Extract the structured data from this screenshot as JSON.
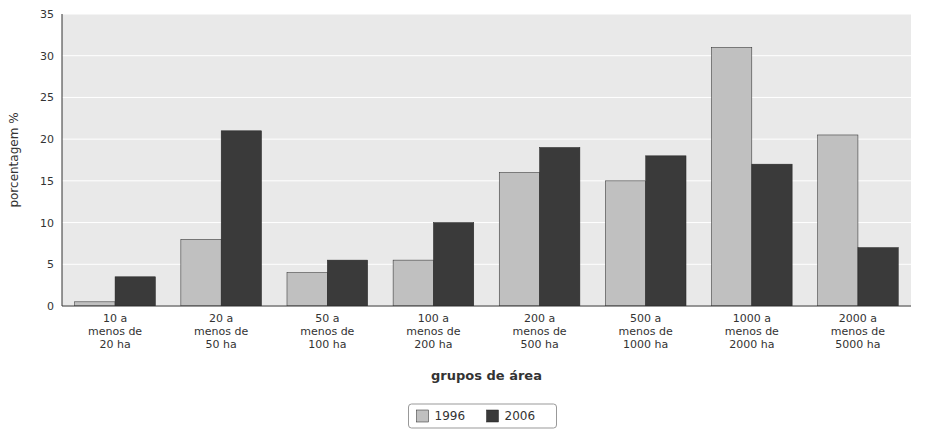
{
  "chart_data": {
    "type": "bar",
    "categories": [
      "10 a\nmenos de\n20 ha",
      "20 a\nmenos de\n50 ha",
      "50 a\nmenos de\n100 ha",
      "100 a\nmenos de\n200 ha",
      "200 a\nmenos de\n500 ha",
      "500 a\nmenos de\n1000 ha",
      "1000 a\nmenos de\n2000 ha",
      "2000 a\nmenos de\n5000 ha"
    ],
    "series": [
      {
        "name": "1996",
        "color": "#c0c0c0",
        "values": [
          0.5,
          8,
          4,
          5.5,
          16,
          15,
          31,
          20.5
        ]
      },
      {
        "name": "2006",
        "color": "#3a3a3a",
        "values": [
          3.5,
          21,
          5.5,
          10,
          19,
          18,
          17,
          7
        ]
      }
    ],
    "xlabel": "grupos de área",
    "ylabel": "porcentagem %",
    "ylim": [
      0,
      35
    ],
    "yticks": [
      0,
      5,
      10,
      15,
      20,
      25,
      30,
      35
    ],
    "grid": true,
    "legend": "bottom"
  }
}
